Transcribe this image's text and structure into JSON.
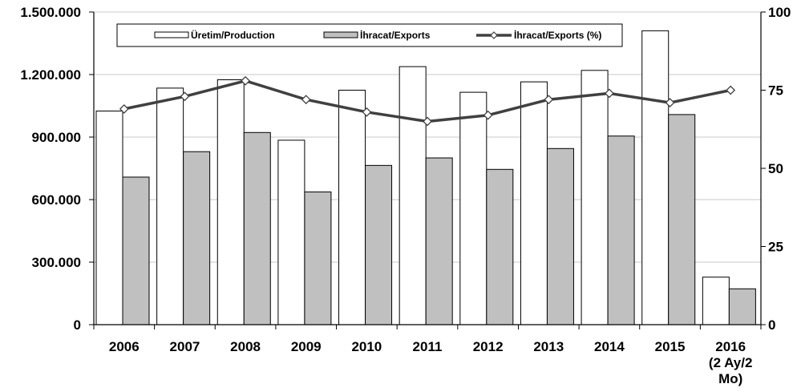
{
  "chart_data": {
    "type": "bar",
    "categories": [
      "2006",
      "2007",
      "2008",
      "2009",
      "2010",
      "2011",
      "2012",
      "2013",
      "2014",
      "2015",
      "2016\n(2 Ay/2\nMo)"
    ],
    "series": [
      {
        "name": "Üretim/Production",
        "kind": "bar",
        "axis": "left",
        "color": "#ffffff",
        "values": [
          1025000,
          1135000,
          1175000,
          885000,
          1125000,
          1238000,
          1115000,
          1165000,
          1220000,
          1410000,
          228000
        ]
      },
      {
        "name": "İhracat/Exports",
        "kind": "bar",
        "axis": "left",
        "color": "#c0c0c0",
        "values": [
          708000,
          830000,
          922000,
          637000,
          764000,
          800000,
          745000,
          845000,
          905000,
          1008000,
          172000
        ]
      },
      {
        "name": "İhracat/Exports (%)",
        "kind": "line",
        "axis": "right",
        "color": "#404040",
        "values": [
          69,
          73,
          78,
          72,
          68,
          65,
          67,
          72,
          74,
          71,
          75
        ]
      }
    ],
    "left_axis": {
      "ylim": [
        0,
        1500000
      ],
      "ticks": [
        "0",
        "300.000",
        "600.000",
        "900.000",
        "1.200.000",
        "1.500.000"
      ]
    },
    "right_axis": {
      "ylim": [
        0,
        100
      ],
      "ticks": [
        "0",
        "25",
        "50",
        "75",
        "100"
      ]
    },
    "legend_position": "top",
    "grid": "horizontal"
  }
}
